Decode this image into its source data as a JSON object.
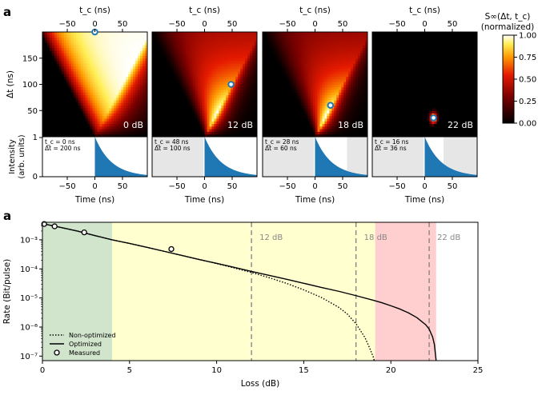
{
  "chart_data": [
    {
      "type": "heatmap",
      "panel_label": "a",
      "xlabel_top": "t_c (ns)",
      "xlabel_bottom": "Time (ns)",
      "ylabel": "Δt (ns)",
      "ylabel_intensity": "Intensity (arb. units)",
      "colorbar_label": "S∞(Δt, t_c)",
      "colorbar_sub": "(normalized)",
      "colorbar_ticks": [
        "0.00",
        "0.25",
        "0.50",
        "0.75",
        "1.00"
      ],
      "top_ticks": [
        "−50",
        "0",
        "50"
      ],
      "top_tick_values": [
        -50,
        0,
        50
      ],
      "bottom_ticks": [
        "−50",
        "0",
        "50"
      ],
      "bottom_tick_values": [
        -50,
        0,
        50
      ],
      "y_ticks": [
        "50",
        "100",
        "150"
      ],
      "y_tick_values": [
        50,
        100,
        150
      ],
      "intensity_ticks": [
        "0",
        "1"
      ],
      "xlim": [
        -95,
        95
      ],
      "ylim": [
        0,
        200
      ],
      "panels": [
        {
          "loss_label": "0 dB",
          "loss": 0,
          "tc_label": "t_c = 0 ns",
          "dt_label": "Δt = 200 ns",
          "tc": 0,
          "dt": 200,
          "decay": 30
        },
        {
          "loss_label": "12 dB",
          "loss": 12,
          "tc_label": "t_c = 48 ns",
          "dt_label": "Δt = 100 ns",
          "tc": 48,
          "dt": 100,
          "decay": 30
        },
        {
          "loss_label": "18 dB",
          "loss": 18,
          "tc_label": "t_c = 28 ns",
          "dt_label": "Δt = 60 ns",
          "tc": 28,
          "dt": 60,
          "decay": 30
        },
        {
          "loss_label": "22 dB",
          "loss": 22,
          "tc_label": "t_c = 16 ns",
          "dt_label": "Δt = 36 ns",
          "tc": 16,
          "dt": 36,
          "decay": 30
        }
      ]
    },
    {
      "type": "line",
      "panel_label": "a",
      "xlabel": "Loss (dB)",
      "ylabel": "Rate (Bit/pulse)",
      "xlim": [
        0,
        25
      ],
      "ylim": [
        7e-08,
        0.004
      ],
      "yscale": "log",
      "x_ticks": [
        "0",
        "5",
        "10",
        "15",
        "20",
        "25"
      ],
      "x_tick_values": [
        0,
        5,
        10,
        15,
        20,
        25
      ],
      "y_ticks": [
        "10⁻³",
        "10⁻⁴",
        "10⁻⁵",
        "10⁻⁶",
        "10⁻⁷"
      ],
      "y_tick_values": [
        0.001,
        0.0001,
        1e-05,
        1e-06,
        1e-07
      ],
      "regions": [
        {
          "x0": 0,
          "x1": 4,
          "color": "#cfe3c9"
        },
        {
          "x0": 4,
          "x1": 19.1,
          "color": "#ffffcc"
        },
        {
          "x0": 19.1,
          "x1": 22.6,
          "color": "#ffcccc"
        }
      ],
      "vlines": [
        {
          "x": 12,
          "label": "12 dB"
        },
        {
          "x": 18,
          "label": "18 dB"
        },
        {
          "x": 22.2,
          "label": "22 dB"
        }
      ],
      "legend": [
        "Non-optimized",
        "Optimized",
        "Measured"
      ],
      "legend_loc": "lower left",
      "series": [
        {
          "name": "Optimized",
          "style": "solid",
          "x": [
            0,
            1,
            2,
            3,
            4,
            5,
            6,
            7,
            8,
            9,
            10,
            11,
            12,
            13,
            14,
            15,
            16,
            17,
            18,
            19,
            19.5,
            20,
            20.5,
            21,
            21.5,
            22,
            22.2,
            22.4,
            22.5,
            22.55,
            22.6
          ],
          "y": [
            0.0036,
            0.0027,
            0.002,
            0.0014,
            0.001,
            0.00075,
            0.00055,
            0.0004,
            0.00029,
            0.00021,
            0.000155,
            0.000113,
            8.2e-05,
            6e-05,
            4.4e-05,
            3.2e-05,
            2.3e-05,
            1.7e-05,
            1.2e-05,
            8.3e-06,
            6.8e-06,
            5.4e-06,
            4.2e-06,
            3.1e-06,
            2.1e-06,
            1.2e-06,
            8.5e-07,
            4.5e-07,
            2.5e-07,
            1.3e-07,
            7e-08
          ]
        },
        {
          "name": "Non-optimized",
          "style": "dotted",
          "x": [
            0,
            1,
            2,
            3,
            4,
            5,
            6,
            7,
            8,
            9,
            10,
            11,
            12,
            13,
            14,
            15,
            16,
            17,
            17.5,
            18,
            18.5,
            18.8,
            19,
            19.05,
            19.1
          ],
          "y": [
            0.0036,
            0.0027,
            0.002,
            0.0014,
            0.001,
            0.00075,
            0.00055,
            0.0004,
            0.00029,
            0.00021,
            0.000152,
            0.000108,
            7.5e-05,
            5e-05,
            3.2e-05,
            1.9e-05,
            1.05e-05,
            4.8e-06,
            2.8e-06,
            1.3e-06,
            4.5e-07,
            1.8e-07,
            9e-08,
            7e-08,
            6e-08
          ]
        },
        {
          "name": "Measured",
          "style": "markers",
          "x": [
            0.1,
            0.7,
            2.4,
            7.4
          ],
          "y": [
            0.0035,
            0.0029,
            0.0018,
            0.00048
          ]
        }
      ]
    }
  ]
}
